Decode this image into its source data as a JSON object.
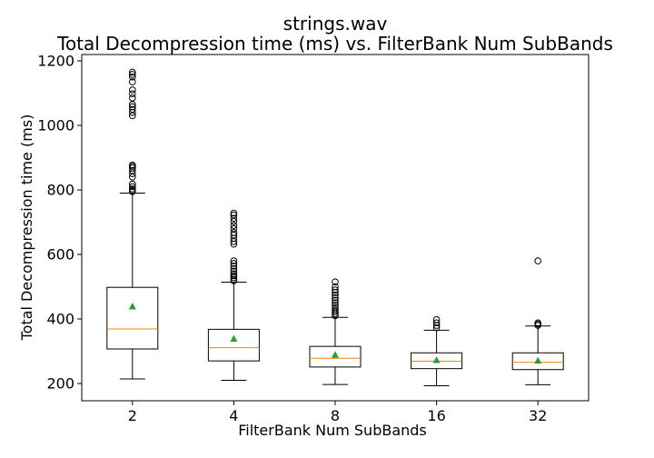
{
  "chart_data": {
    "type": "box",
    "title": "strings.wav",
    "subtitle": "Total Decompression time (ms) vs. FilterBank Num SubBands",
    "xlabel": "FilterBank Num SubBands",
    "ylabel": "Total Decompression time (ms)",
    "ylim": [
      150,
      1225
    ],
    "yticks": [
      200,
      400,
      600,
      800,
      1000,
      1200
    ],
    "categories": [
      "2",
      "4",
      "8",
      "16",
      "32"
    ],
    "grid": false,
    "legend": "none",
    "boxes": [
      {
        "category": "2",
        "whisker_low": 214,
        "q1": 307,
        "median": 369,
        "q3": 498,
        "whisker_high": 790,
        "mean": 438,
        "outliers": [
          795,
          798,
          803,
          810,
          818,
          840,
          850,
          860,
          868,
          873,
          877,
          1030,
          1040,
          1050,
          1058,
          1065,
          1085,
          1098,
          1110,
          1135,
          1150,
          1158,
          1165
        ]
      },
      {
        "category": "4",
        "whisker_low": 210,
        "q1": 270,
        "median": 311,
        "q3": 368,
        "whisker_high": 514,
        "mean": 338,
        "outliers": [
          518,
          522,
          528,
          534,
          540,
          548,
          556,
          564,
          572,
          580,
          632,
          640,
          650,
          660,
          668,
          680,
          690,
          702,
          712,
          722,
          728
        ]
      },
      {
        "category": "8",
        "whisker_low": 197,
        "q1": 251,
        "median": 278,
        "q3": 315,
        "whisker_high": 405,
        "mean": 288,
        "outliers": [
          410,
          416,
          422,
          428,
          435,
          442,
          450,
          458,
          466,
          474,
          482,
          490,
          500,
          515
        ]
      },
      {
        "category": "16",
        "whisker_low": 193,
        "q1": 246,
        "median": 269,
        "q3": 295,
        "whisker_high": 365,
        "mean": 272,
        "outliers": [
          373,
          380,
          388,
          398
        ]
      },
      {
        "category": "32",
        "whisker_low": 196,
        "q1": 243,
        "median": 266,
        "q3": 295,
        "whisker_high": 378,
        "mean": 270,
        "outliers": [
          380,
          384,
          388,
          580
        ]
      }
    ],
    "colors": {
      "box": "#000000",
      "median": "#ff7f0e",
      "mean": "#2ca02c",
      "outlier": "#000000"
    }
  }
}
